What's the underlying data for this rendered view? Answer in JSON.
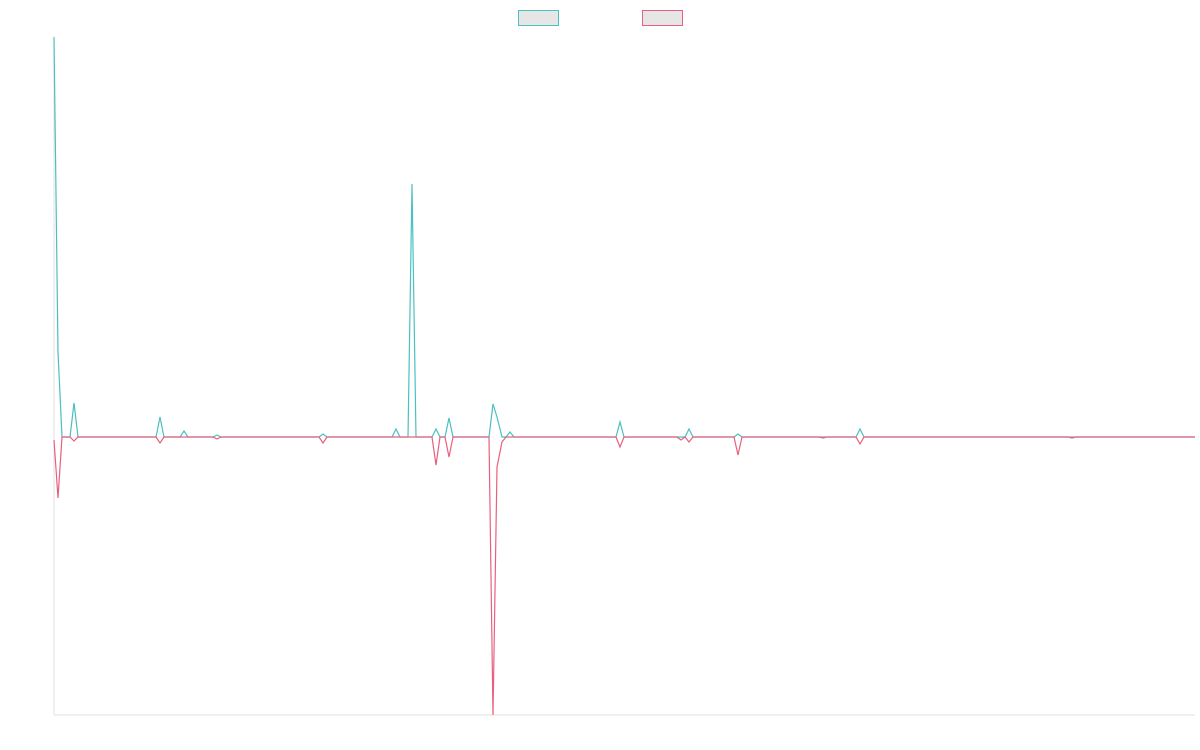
{
  "chart_data": {
    "type": "line",
    "x": [
      0,
      4,
      8,
      16,
      20,
      24,
      102,
      106,
      110,
      126,
      130,
      134,
      159,
      163,
      167,
      265,
      269,
      273,
      338,
      342,
      346,
      354,
      358,
      362,
      378,
      382,
      386,
      391,
      395,
      399,
      435,
      439,
      443,
      448,
      452,
      456,
      460,
      562,
      566,
      570,
      623,
      627,
      631,
      635,
      639,
      680,
      684,
      688,
      765,
      769,
      773,
      802,
      806,
      810,
      1014,
      1018,
      1022,
      1141
    ],
    "xlim": [
      0,
      1141
    ],
    "ylim": [
      -278,
      400
    ],
    "legend": "top",
    "series": [
      {
        "color": "#4bc0c0",
        "values": [
          400,
          85,
          0,
          0,
          34,
          0,
          0,
          20,
          0,
          0,
          6,
          0,
          0,
          2,
          0,
          0,
          3,
          0,
          0,
          8,
          0,
          0,
          253,
          0,
          0,
          8,
          0,
          0,
          19,
          0,
          0,
          33,
          20,
          0,
          0,
          5,
          0,
          0,
          15,
          0,
          0,
          0,
          0,
          8,
          0,
          0,
          3,
          0,
          0,
          0,
          0,
          0,
          8,
          0,
          0,
          0,
          0,
          0
        ]
      },
      {
        "color": "#e8607f",
        "values": [
          -3,
          -61,
          0,
          0,
          -4,
          0,
          0,
          -6,
          0,
          0,
          0,
          0,
          0,
          -2,
          0,
          0,
          -6,
          0,
          0,
          0,
          0,
          0,
          0,
          0,
          0,
          -28,
          0,
          0,
          -20,
          0,
          0,
          -278,
          -30,
          -5,
          0,
          0,
          0,
          0,
          -10,
          0,
          0,
          -3,
          0,
          -5,
          0,
          0,
          -18,
          0,
          0,
          -1,
          0,
          0,
          -7,
          0,
          0,
          -1,
          0,
          0
        ]
      }
    ]
  }
}
